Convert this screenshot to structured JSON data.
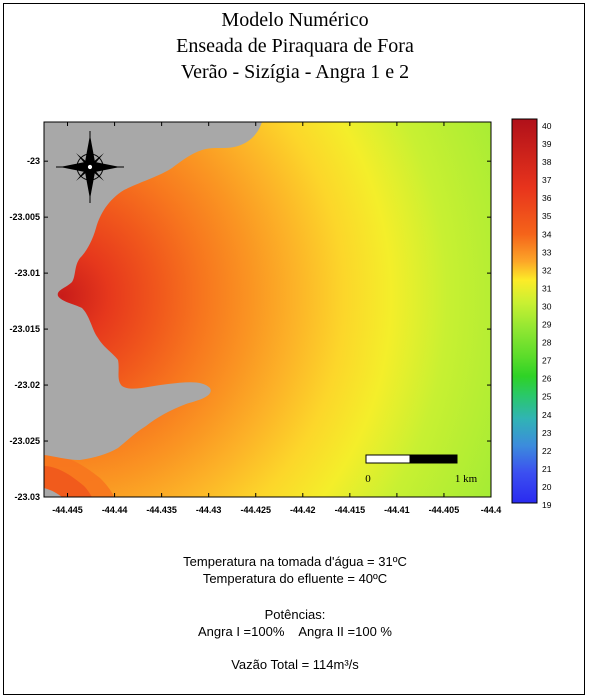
{
  "title": {
    "line1": "Modelo Numérico",
    "line2": "Enseada de Piraquara de Fora",
    "line3": "Verão - Sizígia - Angra 1 e 2"
  },
  "axes": {
    "x_ticks": [
      "-44.445",
      "-44.44",
      "-44.435",
      "-44.43",
      "-44.425",
      "-44.42",
      "-44.415",
      "-44.41",
      "-44.405",
      "-44.4"
    ],
    "x_values": [
      -44.445,
      -44.44,
      -44.435,
      -44.43,
      -44.425,
      -44.42,
      -44.415,
      -44.41,
      -44.405,
      -44.4
    ],
    "y_ticks": [
      "-23",
      "-23.005",
      "-23.01",
      "-23.015",
      "-23.02",
      "-23.025",
      "-23.03"
    ],
    "y_values": [
      -23,
      -23.005,
      -23.01,
      -23.015,
      -23.02,
      -23.025,
      -23.03
    ],
    "xlim": [
      -44.4475,
      -44.4
    ],
    "ylim": [
      -23.03,
      -22.9965
    ]
  },
  "colorbar": {
    "labels": [
      "40",
      "39",
      "38",
      "37",
      "36",
      "35",
      "34",
      "33",
      "32",
      "31",
      "30",
      "29",
      "28",
      "27",
      "26",
      "25",
      "24",
      "23",
      "22",
      "21",
      "20",
      "19"
    ],
    "min": 19,
    "max": 40,
    "colors": {
      "40": "#b0101a",
      "36": "#e8341c",
      "34": "#f5641a",
      "32": "#fca528",
      "31": "#fcec28",
      "30": "#c8f032",
      "29": "#8ee632",
      "28": "#5adc2a",
      "27": "#2ed226",
      "26": "#2ac86a",
      "25": "#30b4b4",
      "24": "#3c8cdc",
      "22": "#3c50f0",
      "19": "#2a2af0"
    }
  },
  "land_color": "#a8a8a8",
  "compass": "compass-rose-icon",
  "scale_bar": {
    "start_label": "0",
    "end_label": "1 km"
  },
  "info": {
    "intake_temp": "Temperatura na tomada d'água = 31ºC",
    "effluent_temp": "Temperatura do efluente = 40ºC",
    "powers_title": "Potências:",
    "angra1": "Angra I =100%",
    "angra2": "Angra II =100 %",
    "flow": "Vazão Total = 114m³/s"
  }
}
